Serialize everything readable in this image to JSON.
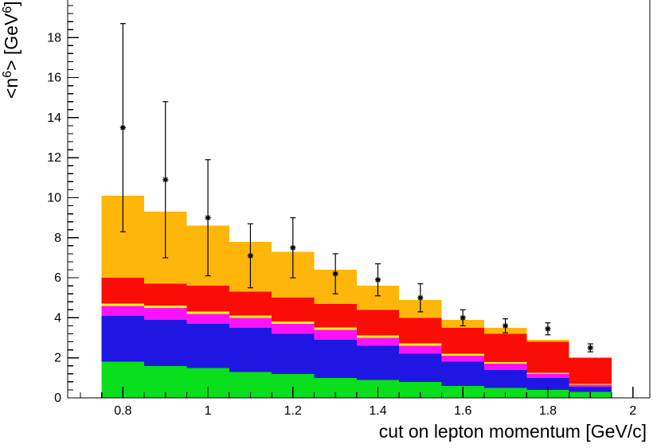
{
  "chart_data": {
    "type": "bar",
    "stacked": true,
    "title": "",
    "xlabel": "cut on lepton momentum [GeV/c]",
    "ylabel": "<n^6> [GeV^6]",
    "ylabel_parts": [
      {
        "text": "<n"
      },
      {
        "text": "6",
        "sup": true
      },
      {
        "text": "> [GeV"
      },
      {
        "text": "6",
        "sup": true
      },
      {
        "text": "]"
      }
    ],
    "xlim": [
      0.67,
      2.04
    ],
    "ylim": [
      0,
      19.8
    ],
    "xticks": [
      0.8,
      1.0,
      1.2,
      1.4,
      1.6,
      1.8,
      2.0
    ],
    "xtick_labels": [
      "0.8",
      "1",
      "1.2",
      "1.4",
      "1.6",
      "1.8",
      "2"
    ],
    "xtick_minor_step": 0.05,
    "yticks": [
      0,
      2,
      4,
      6,
      8,
      10,
      12,
      14,
      16,
      18
    ],
    "ytick_labels": [
      "0",
      "2",
      "4",
      "6",
      "8",
      "10",
      "12",
      "14",
      "16",
      "18"
    ],
    "ytick_minor_step": 0.4,
    "bin_edges": [
      0.75,
      0.85,
      0.95,
      1.05,
      1.15,
      1.25,
      1.35,
      1.45,
      1.55,
      1.65,
      1.75,
      1.85,
      1.95
    ],
    "series": [
      {
        "name": "green-component",
        "color": "#09df1c",
        "values": [
          1.8,
          1.6,
          1.5,
          1.3,
          1.2,
          1.0,
          0.9,
          0.8,
          0.6,
          0.5,
          0.4,
          0.3
        ]
      },
      {
        "name": "blue-component",
        "color": "#1f16e3",
        "values": [
          2.3,
          2.3,
          2.2,
          2.2,
          2.0,
          1.9,
          1.7,
          1.4,
          1.2,
          0.9,
          0.6,
          0.25
        ]
      },
      {
        "name": "magenta-component",
        "color": "#fb12fb",
        "values": [
          0.5,
          0.6,
          0.5,
          0.5,
          0.5,
          0.5,
          0.4,
          0.4,
          0.3,
          0.3,
          0.2,
          0.1
        ]
      },
      {
        "name": "yellow-component",
        "color": "#ffff00",
        "values": [
          0.12,
          0.12,
          0.12,
          0.12,
          0.12,
          0.12,
          0.12,
          0.12,
          0.1,
          0.08,
          0.05,
          0.05
        ]
      },
      {
        "name": "red-component",
        "color": "#f90d06",
        "values": [
          1.28,
          1.08,
          1.28,
          1.18,
          1.18,
          1.18,
          1.28,
          1.28,
          1.3,
          1.42,
          1.55,
          1.3
        ]
      },
      {
        "name": "orange-component",
        "color": "#ffb60a",
        "values": [
          4.1,
          3.6,
          3.0,
          2.5,
          2.3,
          1.7,
          1.2,
          0.9,
          0.4,
          0.3,
          0.1,
          0.0
        ]
      }
    ],
    "points": {
      "marker": "asterisk",
      "color": "#000000",
      "x": [
        0.8,
        0.9,
        1.0,
        1.1,
        1.2,
        1.3,
        1.4,
        1.5,
        1.6,
        1.7,
        1.8,
        1.9
      ],
      "y": [
        13.5,
        10.9,
        9.0,
        7.1,
        7.5,
        6.2,
        5.9,
        5.0,
        4.0,
        3.6,
        3.45,
        2.5
      ],
      "yerr": [
        5.2,
        3.9,
        2.9,
        1.6,
        1.5,
        1.0,
        0.8,
        0.7,
        0.4,
        0.35,
        0.3,
        0.2
      ]
    },
    "grid": false,
    "legend": "none",
    "axis_color": "#000000",
    "background_color": "#ffffff"
  }
}
